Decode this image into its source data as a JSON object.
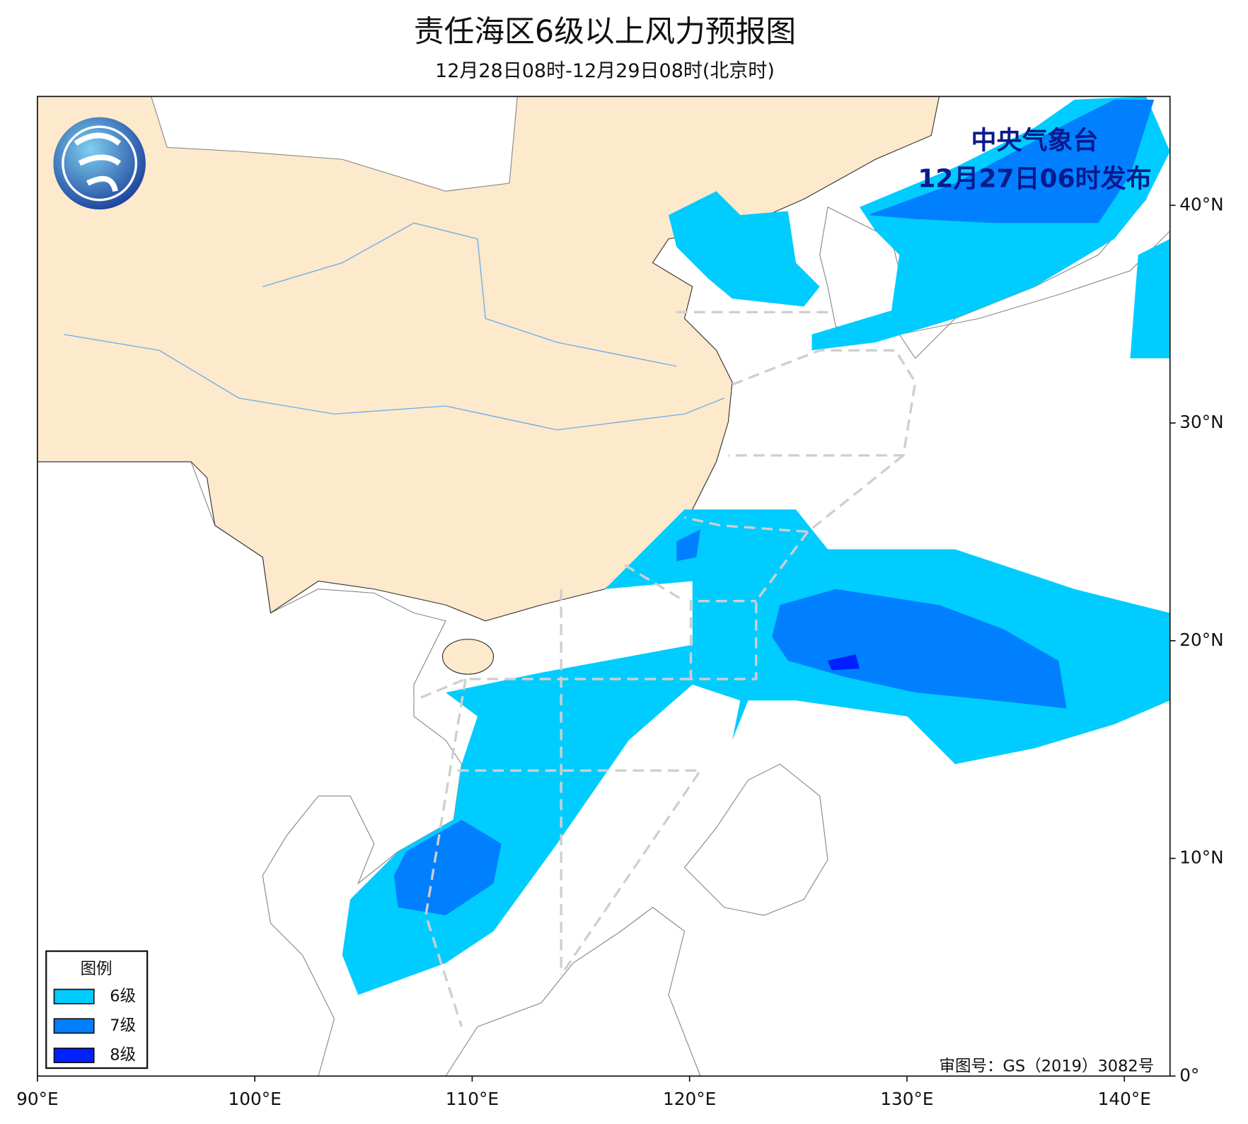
{
  "header": {
    "title": "责任海区6级以上风力预报图",
    "subtitle": "12月28日08时-12月29日08时(北京时)"
  },
  "map": {
    "issuer": "中央气象台",
    "issue_time": "12月27日06时发布",
    "xlim": [
      90,
      142.1
    ],
    "ylim": [
      0,
      45
    ],
    "xticks": [
      {
        "value": 90,
        "label": "90°E"
      },
      {
        "value": 100,
        "label": "100°E"
      },
      {
        "value": 110,
        "label": "110°E"
      },
      {
        "value": 120,
        "label": "120°E"
      },
      {
        "value": 130,
        "label": "130°E"
      },
      {
        "value": 140,
        "label": "140°E"
      }
    ],
    "yticks": [
      {
        "value": 0,
        "label": "0°"
      },
      {
        "value": 10,
        "label": "10°N"
      },
      {
        "value": 20,
        "label": "20°N"
      },
      {
        "value": 30,
        "label": "30°N"
      },
      {
        "value": 40,
        "label": "40°N"
      }
    ],
    "approval": "审图号：GS（2019）3082号"
  },
  "legend": {
    "title": "图例",
    "items": [
      {
        "label": "6级",
        "color": "#00ccff"
      },
      {
        "label": "7级",
        "color": "#0080ff"
      },
      {
        "label": "8级",
        "color": "#0020ff"
      }
    ]
  }
}
